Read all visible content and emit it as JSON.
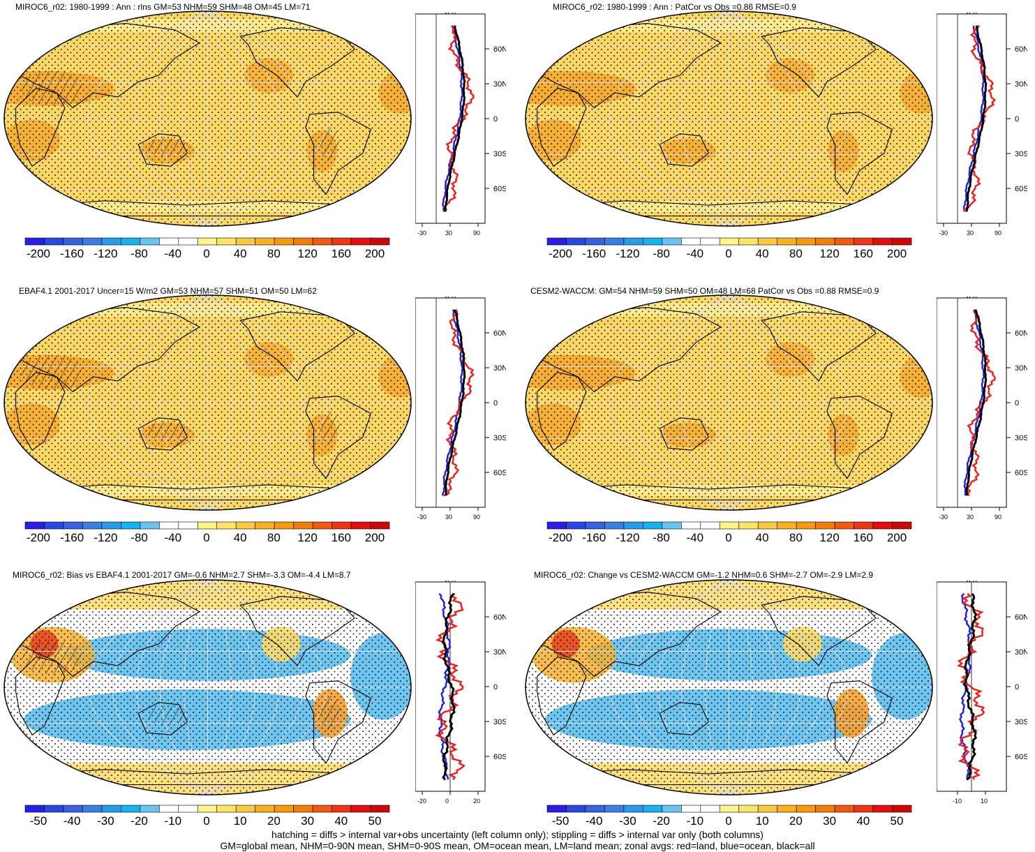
{
  "panels": [
    {
      "title": "MIROC6_r02: 1980-1999 : Ann : rlns GM=53 NHM=59 SHM=48 OM=45 LM=71",
      "kind": "abs",
      "colorbar_labels": [
        "-200",
        "-160",
        "-120",
        "-80",
        "-40",
        "0",
        "40",
        "80",
        "120",
        "160",
        "200"
      ],
      "zonal_unit": "W m²",
      "zonal_xticks": [
        "-30",
        "30",
        "90"
      ],
      "lat_ticks": [
        "60N",
        "30N",
        "0",
        "30S",
        "60S"
      ],
      "hatching": true
    },
    {
      "title": "MIROC6_r02: 1980-1999 : Ann : PatCor vs Obs =0.86 RMSE=0.9",
      "kind": "abs",
      "colorbar_labels": [
        "-200",
        "-160",
        "-120",
        "-80",
        "-40",
        "0",
        "40",
        "80",
        "120",
        "160",
        "200"
      ],
      "zonal_unit": "W m²",
      "zonal_xticks": [
        "-30",
        "30",
        "90"
      ],
      "lat_ticks": [
        "60N",
        "30N",
        "0",
        "30S",
        "60S"
      ],
      "hatching": false
    },
    {
      "title": "EBAF4.1 2001-2017 Uncer=15 W/m2 GM=53 NHM=57 SHM=51 OM=50 LM=62",
      "kind": "abs",
      "colorbar_labels": [
        "-200",
        "-160",
        "-120",
        "-80",
        "-40",
        "0",
        "40",
        "80",
        "120",
        "160",
        "200"
      ],
      "zonal_unit": "W m²",
      "zonal_xticks": [
        "-30",
        "30",
        "90"
      ],
      "lat_ticks": [
        "60N",
        "30N",
        "0",
        "30S",
        "60S"
      ],
      "hatching": true
    },
    {
      "title": "CESM2-WACCM: GM=54 NHM=59 SHM=50 OM=48 LM=68 PatCor vs Obs =0.88 RMSE=0.9",
      "kind": "abs",
      "colorbar_labels": [
        "-200",
        "-160",
        "-120",
        "-80",
        "-40",
        "0",
        "40",
        "80",
        "120",
        "160",
        "200"
      ],
      "zonal_unit": "W m²",
      "zonal_xticks": [
        "-30",
        "30",
        "90"
      ],
      "lat_ticks": [
        "60N",
        "30N",
        "0",
        "30S",
        "60S"
      ],
      "hatching": false
    },
    {
      "title": "MIROC6_r02: Bias vs EBAF4.1 2001-2017 GM=-0.6 NHM=2.7 SHM=-3.3 OM=-4.4 LM=8.7",
      "kind": "diff",
      "colorbar_labels": [
        "-50",
        "-40",
        "-30",
        "-20",
        "-10",
        "0",
        "10",
        "20",
        "30",
        "40",
        "50"
      ],
      "zonal_unit": "W m²",
      "zonal_xticks": [
        "-20",
        "0",
        "20"
      ],
      "lat_ticks": [
        "60N",
        "30N",
        "0",
        "30S",
        "60S"
      ],
      "hatching": true
    },
    {
      "title": "MIROC6_r02: Change vs CESM2-WACCM GM=-1.2 NHM=0.6 SHM=-2.7 OM=-2.9 LM=2.9",
      "kind": "diff",
      "colorbar_labels": [
        "-50",
        "-40",
        "-30",
        "-20",
        "-10",
        "0",
        "10",
        "20",
        "30",
        "40",
        "50"
      ],
      "zonal_unit": "W m²",
      "zonal_xticks": [
        "-10",
        "10"
      ],
      "lat_ticks": [
        "60N",
        "30N",
        "0",
        "30S",
        "60S"
      ],
      "hatching": false
    }
  ],
  "colors": {
    "scale": [
      "#2a1ee0",
      "#2a48e0",
      "#3a62dc",
      "#3d7fe0",
      "#2a9be8",
      "#1ab2ee",
      "#6cc3f0",
      "#ffffff",
      "#ffffff",
      "#fff38c",
      "#fce36a",
      "#f9c944",
      "#f7b125",
      "#f59a10",
      "#f07d0c",
      "#ee5a10",
      "#ec3514",
      "#e01010",
      "#c80a0a"
    ],
    "land_line": "#e8231e",
    "ocean_line": "#2222e0",
    "all_line": "#000000",
    "abs_fill": "#fbd866",
    "warm_fill": "#f6a72c",
    "cool_fill": "#6ec6f0"
  },
  "footer": {
    "line1": "hatching = diffs > internal var+obs uncertainty (left column only); stippling = diffs > internal var only (both columns)",
    "line2": "GM=global mean, NHM=0-90N mean, SHM=0-90S mean, OM=ocean mean, LM=land mean; zonal avgs: red=land, blue=ocean, black=all"
  }
}
